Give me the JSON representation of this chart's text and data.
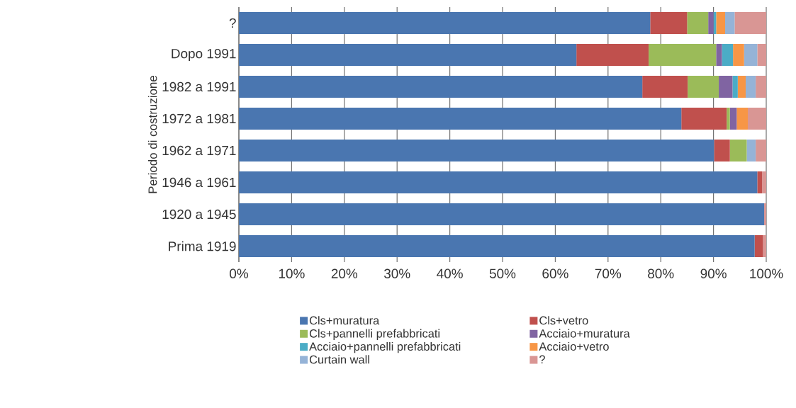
{
  "chart_data": {
    "type": "bar",
    "orientation": "horizontal",
    "stacked": true,
    "ylabel": "Periodo di costruzione",
    "categories": [
      "?",
      "Dopo 1991",
      "1982 a 1991",
      "1972 a 1981",
      "1962 a 1971",
      "1946 a 1961",
      "1920 a 1945",
      "Prima 1919"
    ],
    "series": [
      {
        "name": "Cls+muratura",
        "color": "#4a76b0",
        "values": [
          78,
          64,
          76.5,
          83.9,
          90.1,
          98.3,
          99.6,
          97.8
        ]
      },
      {
        "name": "Cls+vetro",
        "color": "#c0504d",
        "values": [
          7,
          13.7,
          8.6,
          8.6,
          3.0,
          0.9,
          0,
          1.6
        ]
      },
      {
        "name": "Cls+pannelli prefabbricati",
        "color": "#9bbb59",
        "values": [
          4,
          12.8,
          5.9,
          0.6,
          3.2,
          0,
          0,
          0
        ]
      },
      {
        "name": "Acciaio+muratura",
        "color": "#8064a2",
        "values": [
          1,
          1.1,
          2.6,
          1.3,
          0,
          0,
          0,
          0
        ]
      },
      {
        "name": "Acciaio+pannelli prefabbricati",
        "color": "#4bacc6",
        "values": [
          0.5,
          2.1,
          1.0,
          0,
          0,
          0,
          0,
          0
        ]
      },
      {
        "name": "Acciaio+vetro",
        "color": "#f79646",
        "values": [
          1.7,
          2.1,
          1.5,
          2.1,
          0,
          0,
          0,
          0
        ]
      },
      {
        "name": "Curtain wall",
        "color": "#95b3d7",
        "values": [
          1.8,
          2.5,
          1.9,
          0,
          1.7,
          0,
          0,
          0
        ]
      },
      {
        "name": "?",
        "color": "#d99694",
        "values": [
          6,
          1.7,
          2.0,
          3.5,
          2.0,
          0.8,
          0.4,
          0.6
        ]
      }
    ],
    "xlim": [
      0,
      100
    ],
    "xticks": [
      {
        "value": 0,
        "label": "0%"
      },
      {
        "value": 10,
        "label": "10%"
      },
      {
        "value": 20,
        "label": "20%"
      },
      {
        "value": 30,
        "label": "30%"
      },
      {
        "value": 40,
        "label": "40%"
      },
      {
        "value": 50,
        "label": "50%"
      },
      {
        "value": 60,
        "label": "60%"
      },
      {
        "value": 70,
        "label": "70%"
      },
      {
        "value": 80,
        "label": "80%"
      },
      {
        "value": 90,
        "label": "90%"
      },
      {
        "value": 100,
        "label": "100%"
      }
    ],
    "grid": "x",
    "legend": "bottom"
  }
}
